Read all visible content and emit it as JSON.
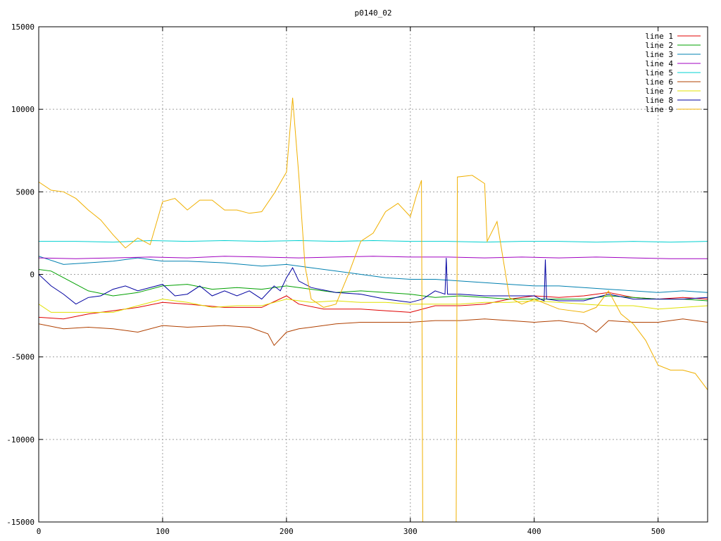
{
  "chart_data": {
    "type": "line",
    "title": "p0140_02",
    "xlabel": "",
    "ylabel": "",
    "xlim": [
      0,
      540
    ],
    "ylim": [
      -15000,
      15000
    ],
    "x_ticks": [
      0,
      100,
      200,
      300,
      400,
      500
    ],
    "y_ticks": [
      -15000,
      -10000,
      -5000,
      0,
      5000,
      10000,
      15000
    ],
    "grid": true,
    "legend_position": "top-right",
    "series": [
      {
        "name": "line 1",
        "color": "#e00000",
        "points": [
          [
            0,
            -2600
          ],
          [
            20,
            -2700
          ],
          [
            40,
            -2400
          ],
          [
            60,
            -2200
          ],
          [
            80,
            -2000
          ],
          [
            100,
            -1700
          ],
          [
            120,
            -1800
          ],
          [
            150,
            -2000
          ],
          [
            180,
            -2000
          ],
          [
            200,
            -1300
          ],
          [
            210,
            -1800
          ],
          [
            230,
            -2100
          ],
          [
            260,
            -2100
          ],
          [
            280,
            -2200
          ],
          [
            300,
            -2300
          ],
          [
            320,
            -1900
          ],
          [
            340,
            -1900
          ],
          [
            360,
            -1800
          ],
          [
            380,
            -1500
          ],
          [
            400,
            -1300
          ],
          [
            420,
            -1400
          ],
          [
            440,
            -1300
          ],
          [
            460,
            -1100
          ],
          [
            480,
            -1400
          ],
          [
            500,
            -1500
          ],
          [
            520,
            -1400
          ],
          [
            540,
            -1500
          ]
        ]
      },
      {
        "name": "line 2",
        "color": "#00a000",
        "points": [
          [
            0,
            300
          ],
          [
            10,
            200
          ],
          [
            20,
            -200
          ],
          [
            30,
            -600
          ],
          [
            40,
            -1000
          ],
          [
            60,
            -1300
          ],
          [
            80,
            -1100
          ],
          [
            100,
            -700
          ],
          [
            120,
            -600
          ],
          [
            140,
            -900
          ],
          [
            160,
            -800
          ],
          [
            180,
            -900
          ],
          [
            200,
            -700
          ],
          [
            220,
            -900
          ],
          [
            240,
            -1100
          ],
          [
            260,
            -1000
          ],
          [
            280,
            -1100
          ],
          [
            300,
            -1200
          ],
          [
            320,
            -1400
          ],
          [
            340,
            -1300
          ],
          [
            360,
            -1400
          ],
          [
            380,
            -1500
          ],
          [
            400,
            -1500
          ],
          [
            420,
            -1500
          ],
          [
            440,
            -1500
          ],
          [
            460,
            -1300
          ],
          [
            480,
            -1400
          ],
          [
            500,
            -1500
          ],
          [
            520,
            -1500
          ],
          [
            540,
            -1600
          ]
        ]
      },
      {
        "name": "line 3",
        "color": "#0080b0",
        "points": [
          [
            0,
            1100
          ],
          [
            20,
            600
          ],
          [
            40,
            700
          ],
          [
            60,
            800
          ],
          [
            80,
            1000
          ],
          [
            100,
            800
          ],
          [
            120,
            800
          ],
          [
            150,
            700
          ],
          [
            180,
            500
          ],
          [
            200,
            600
          ],
          [
            220,
            400
          ],
          [
            240,
            200
          ],
          [
            260,
            0
          ],
          [
            280,
            -200
          ],
          [
            300,
            -300
          ],
          [
            320,
            -300
          ],
          [
            340,
            -400
          ],
          [
            360,
            -500
          ],
          [
            380,
            -600
          ],
          [
            400,
            -700
          ],
          [
            420,
            -700
          ],
          [
            440,
            -800
          ],
          [
            460,
            -900
          ],
          [
            480,
            -1000
          ],
          [
            500,
            -1100
          ],
          [
            520,
            -1000
          ],
          [
            540,
            -1100
          ]
        ]
      },
      {
        "name": "line 4",
        "color": "#a000c0",
        "points": [
          [
            0,
            1000
          ],
          [
            30,
            950
          ],
          [
            60,
            1000
          ],
          [
            90,
            1050
          ],
          [
            120,
            1000
          ],
          [
            150,
            1100
          ],
          [
            180,
            1050
          ],
          [
            210,
            1000
          ],
          [
            240,
            1050
          ],
          [
            270,
            1100
          ],
          [
            300,
            1050
          ],
          [
            330,
            1050
          ],
          [
            360,
            1000
          ],
          [
            390,
            1050
          ],
          [
            420,
            1000
          ],
          [
            450,
            1050
          ],
          [
            480,
            1000
          ],
          [
            510,
            950
          ],
          [
            540,
            950
          ]
        ]
      },
      {
        "name": "line 5",
        "color": "#00d0d0",
        "points": [
          [
            0,
            2000
          ],
          [
            30,
            2000
          ],
          [
            60,
            1950
          ],
          [
            90,
            2050
          ],
          [
            120,
            2000
          ],
          [
            150,
            2050
          ],
          [
            180,
            2000
          ],
          [
            210,
            2050
          ],
          [
            240,
            2000
          ],
          [
            270,
            2050
          ],
          [
            300,
            2000
          ],
          [
            330,
            2000
          ],
          [
            360,
            1950
          ],
          [
            390,
            2000
          ],
          [
            420,
            2000
          ],
          [
            450,
            1950
          ],
          [
            480,
            2000
          ],
          [
            510,
            1950
          ],
          [
            540,
            2000
          ]
        ]
      },
      {
        "name": "line 6",
        "color": "#b04000",
        "points": [
          [
            0,
            -3000
          ],
          [
            20,
            -3300
          ],
          [
            40,
            -3200
          ],
          [
            60,
            -3300
          ],
          [
            80,
            -3500
          ],
          [
            100,
            -3100
          ],
          [
            120,
            -3200
          ],
          [
            150,
            -3100
          ],
          [
            170,
            -3200
          ],
          [
            185,
            -3600
          ],
          [
            190,
            -4300
          ],
          [
            200,
            -3500
          ],
          [
            210,
            -3300
          ],
          [
            220,
            -3200
          ],
          [
            240,
            -3000
          ],
          [
            260,
            -2900
          ],
          [
            280,
            -2900
          ],
          [
            300,
            -2900
          ],
          [
            320,
            -2800
          ],
          [
            340,
            -2800
          ],
          [
            360,
            -2700
          ],
          [
            380,
            -2800
          ],
          [
            400,
            -2900
          ],
          [
            420,
            -2800
          ],
          [
            440,
            -3000
          ],
          [
            450,
            -3500
          ],
          [
            460,
            -2800
          ],
          [
            480,
            -2900
          ],
          [
            500,
            -2900
          ],
          [
            520,
            -2700
          ],
          [
            540,
            -2900
          ]
        ]
      },
      {
        "name": "line 7",
        "color": "#e0e000",
        "points": [
          [
            0,
            -1800
          ],
          [
            10,
            -2300
          ],
          [
            30,
            -2300
          ],
          [
            60,
            -2300
          ],
          [
            80,
            -1900
          ],
          [
            100,
            -1500
          ],
          [
            120,
            -1700
          ],
          [
            140,
            -2000
          ],
          [
            160,
            -1900
          ],
          [
            180,
            -1900
          ],
          [
            200,
            -1500
          ],
          [
            220,
            -1700
          ],
          [
            240,
            -1600
          ],
          [
            260,
            -1700
          ],
          [
            280,
            -1700
          ],
          [
            300,
            -1800
          ],
          [
            320,
            -1800
          ],
          [
            340,
            -1800
          ],
          [
            360,
            -1700
          ],
          [
            380,
            -1700
          ],
          [
            400,
            -1600
          ],
          [
            420,
            -1700
          ],
          [
            440,
            -1800
          ],
          [
            460,
            -1900
          ],
          [
            480,
            -1900
          ],
          [
            500,
            -2100
          ],
          [
            520,
            -2000
          ],
          [
            540,
            -1900
          ]
        ]
      },
      {
        "name": "line 8",
        "color": "#0000a0",
        "points": [
          [
            0,
            0
          ],
          [
            10,
            -700
          ],
          [
            20,
            -1200
          ],
          [
            30,
            -1800
          ],
          [
            40,
            -1400
          ],
          [
            50,
            -1300
          ],
          [
            60,
            -900
          ],
          [
            70,
            -700
          ],
          [
            80,
            -1000
          ],
          [
            100,
            -600
          ],
          [
            110,
            -1300
          ],
          [
            120,
            -1200
          ],
          [
            130,
            -700
          ],
          [
            140,
            -1300
          ],
          [
            150,
            -1000
          ],
          [
            160,
            -1300
          ],
          [
            170,
            -1000
          ],
          [
            180,
            -1500
          ],
          [
            190,
            -700
          ],
          [
            195,
            -1000
          ],
          [
            200,
            -200
          ],
          [
            205,
            400
          ],
          [
            210,
            -400
          ],
          [
            220,
            -800
          ],
          [
            240,
            -1100
          ],
          [
            260,
            -1200
          ],
          [
            280,
            -1500
          ],
          [
            300,
            -1700
          ],
          [
            310,
            -1500
          ],
          [
            320,
            -1000
          ],
          [
            328,
            -1200
          ],
          [
            329,
            1000
          ],
          [
            330,
            -1200
          ],
          [
            340,
            -1200
          ],
          [
            360,
            -1300
          ],
          [
            380,
            -1300
          ],
          [
            400,
            -1300
          ],
          [
            405,
            -1500
          ],
          [
            408,
            -1600
          ],
          [
            409,
            900
          ],
          [
            410,
            -1500
          ],
          [
            420,
            -1600
          ],
          [
            440,
            -1600
          ],
          [
            460,
            -1200
          ],
          [
            480,
            -1500
          ],
          [
            500,
            -1500
          ],
          [
            520,
            -1500
          ],
          [
            540,
            -1400
          ]
        ]
      },
      {
        "name": "line 9",
        "color": "#f0b000",
        "points": [
          [
            0,
            5600
          ],
          [
            10,
            5100
          ],
          [
            20,
            5000
          ],
          [
            30,
            4600
          ],
          [
            40,
            3900
          ],
          [
            50,
            3300
          ],
          [
            60,
            2400
          ],
          [
            70,
            1600
          ],
          [
            80,
            2200
          ],
          [
            90,
            1800
          ],
          [
            100,
            4400
          ],
          [
            110,
            4600
          ],
          [
            120,
            3900
          ],
          [
            130,
            4500
          ],
          [
            140,
            4500
          ],
          [
            150,
            3900
          ],
          [
            160,
            3900
          ],
          [
            170,
            3700
          ],
          [
            180,
            3800
          ],
          [
            190,
            4900
          ],
          [
            200,
            6200
          ],
          [
            205,
            10700
          ],
          [
            210,
            6000
          ],
          [
            215,
            500
          ],
          [
            220,
            -1500
          ],
          [
            230,
            -2000
          ],
          [
            240,
            -1800
          ],
          [
            250,
            0
          ],
          [
            260,
            2000
          ],
          [
            270,
            2500
          ],
          [
            280,
            3800
          ],
          [
            290,
            4300
          ],
          [
            300,
            3500
          ],
          [
            305,
            4800
          ],
          [
            309,
            5700
          ],
          [
            310,
            -15000
          ],
          [
            337,
            -15000
          ],
          [
            338,
            5900
          ],
          [
            350,
            6000
          ],
          [
            360,
            5500
          ],
          [
            362,
            2000
          ],
          [
            370,
            3200
          ],
          [
            380,
            -1400
          ],
          [
            390,
            -1800
          ],
          [
            400,
            -1500
          ],
          [
            420,
            -2100
          ],
          [
            440,
            -2300
          ],
          [
            450,
            -2000
          ],
          [
            460,
            -1000
          ],
          [
            470,
            -2400
          ],
          [
            480,
            -3000
          ],
          [
            490,
            -4000
          ],
          [
            500,
            -5500
          ],
          [
            510,
            -5800
          ],
          [
            520,
            -5800
          ],
          [
            530,
            -6000
          ],
          [
            540,
            -7000
          ]
        ]
      }
    ]
  }
}
